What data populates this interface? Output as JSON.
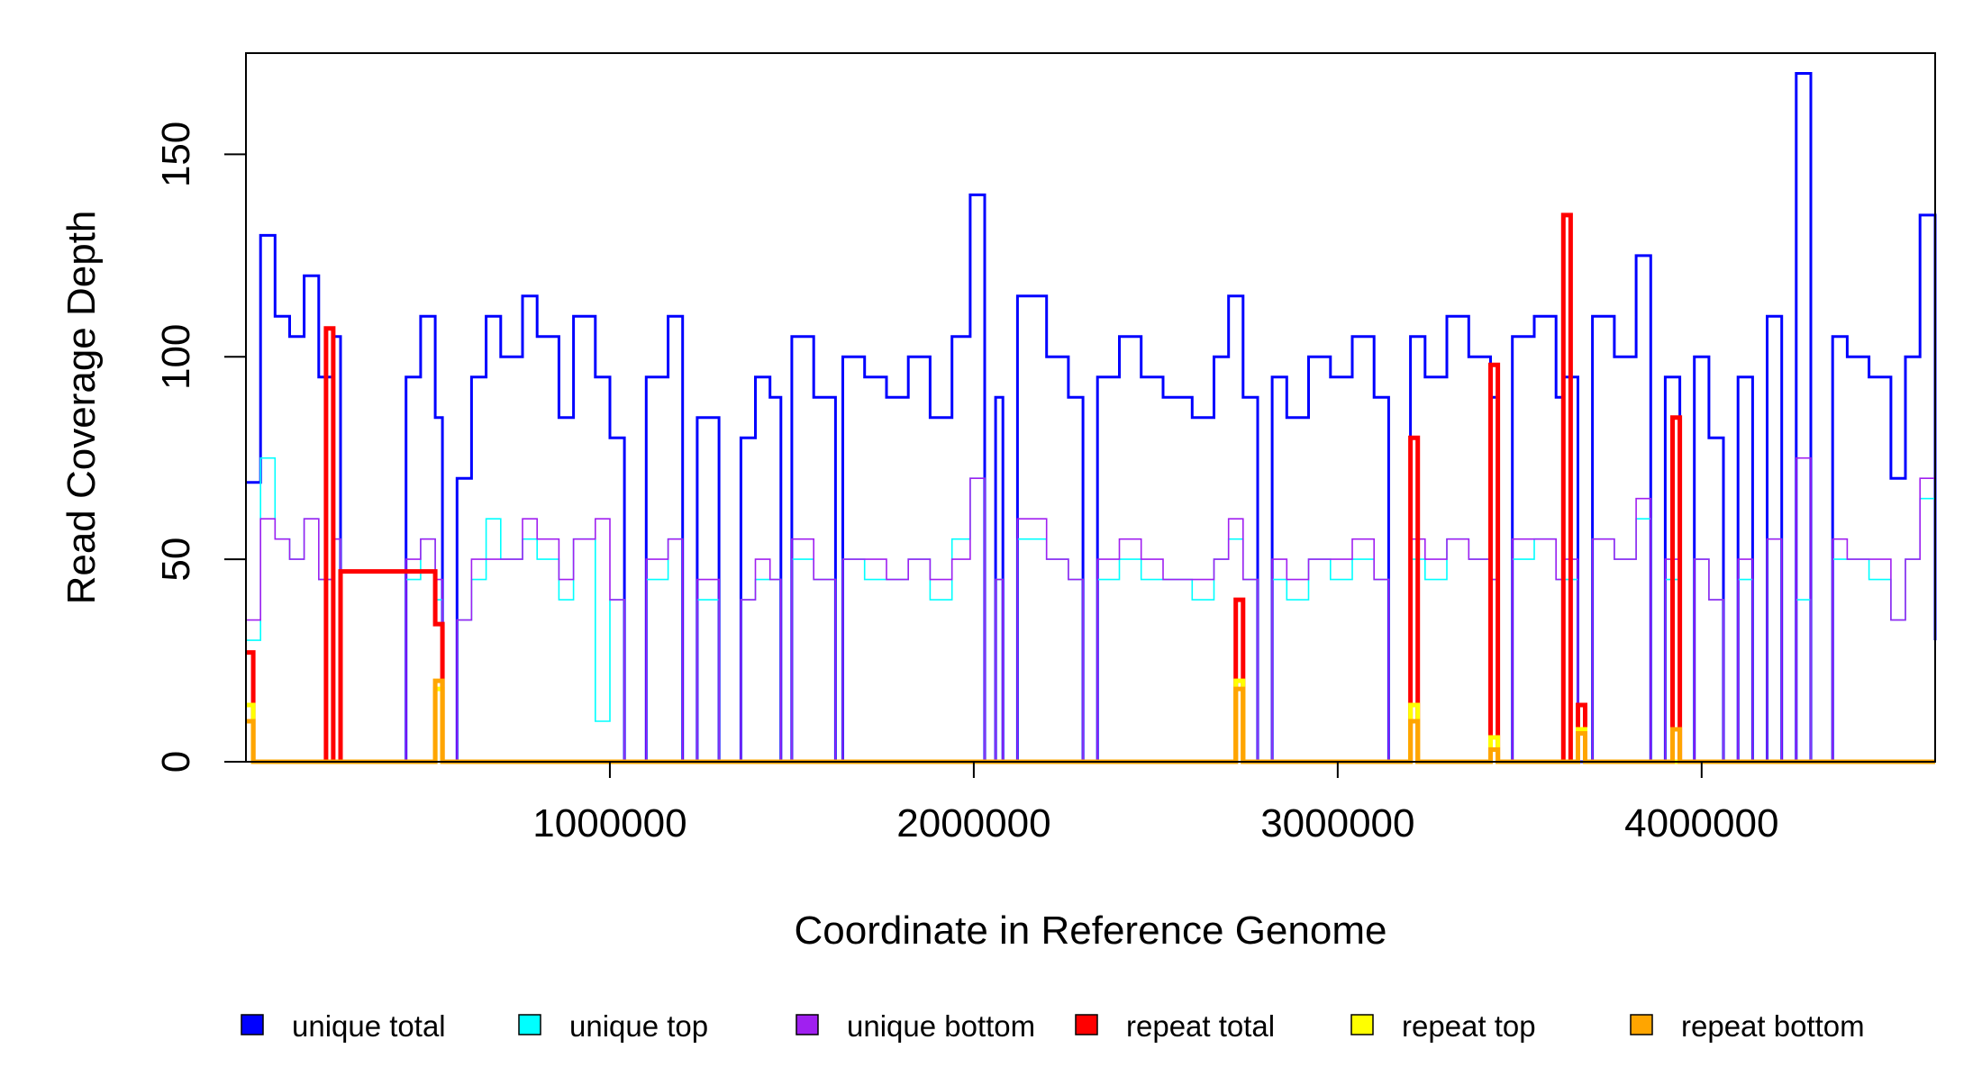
{
  "chart_data": {
    "type": "line",
    "title": "",
    "xlabel": "Coordinate in Reference Genome",
    "ylabel": "Read Coverage Depth",
    "xlim": [
      1,
      4641652
    ],
    "ylim": [
      0,
      175
    ],
    "x_ticks": [
      1000000,
      2000000,
      3000000,
      4000000
    ],
    "x_tick_labels": [
      "1000000",
      "2000000",
      "3000000",
      "4000000"
    ],
    "y_ticks": [
      0,
      50,
      100,
      150
    ],
    "y_tick_labels": [
      "0",
      "50",
      "100",
      "150"
    ],
    "step_plot": true,
    "grid": false,
    "legend_position": "bottom",
    "series": [
      {
        "name": "unique total",
        "color": "#0000FF",
        "x": [
          0,
          40000,
          80000,
          120000,
          160000,
          200000,
          240000,
          260000,
          300000,
          360000,
          400000,
          440000,
          480000,
          520000,
          540000,
          580000,
          620000,
          660000,
          700000,
          760000,
          800000,
          860000,
          900000,
          960000,
          1000000,
          1040000,
          1060000,
          1100000,
          1160000,
          1200000,
          1240000,
          1300000,
          1360000,
          1400000,
          1440000,
          1470000,
          1500000,
          1560000,
          1620000,
          1640000,
          1700000,
          1760000,
          1820000,
          1880000,
          1940000,
          1990000,
          2030000,
          2060000,
          2080000,
          2120000,
          2200000,
          2260000,
          2300000,
          2340000,
          2400000,
          2460000,
          2520000,
          2600000,
          2660000,
          2700000,
          2740000,
          2780000,
          2820000,
          2860000,
          2920000,
          2980000,
          3040000,
          3100000,
          3140000,
          3200000,
          3240000,
          3300000,
          3360000,
          3420000,
          3440000,
          3480000,
          3540000,
          3600000,
          3620000,
          3660000,
          3700000,
          3760000,
          3820000,
          3860000,
          3900000,
          3940000,
          3980000,
          4020000,
          4060000,
          4100000,
          4140000,
          4180000,
          4220000,
          4260000,
          4300000,
          4360000,
          4400000,
          4460000,
          4520000,
          4560000,
          4600000,
          4641652
        ],
        "y": [
          69,
          130,
          110,
          105,
          120,
          95,
          105,
          0,
          0,
          0,
          0,
          95,
          110,
          85,
          0,
          70,
          95,
          110,
          100,
          115,
          105,
          85,
          110,
          95,
          80,
          0,
          0,
          95,
          110,
          0,
          85,
          0,
          80,
          95,
          90,
          0,
          105,
          90,
          0,
          100,
          95,
          90,
          100,
          85,
          105,
          140,
          0,
          90,
          0,
          115,
          100,
          90,
          0,
          95,
          105,
          95,
          90,
          85,
          100,
          115,
          90,
          0,
          95,
          85,
          100,
          95,
          105,
          90,
          0,
          105,
          95,
          110,
          100,
          90,
          0,
          105,
          110,
          90,
          95,
          0,
          110,
          100,
          125,
          0,
          95,
          0,
          100,
          80,
          0,
          95,
          0,
          110,
          0,
          170,
          0,
          105,
          100,
          95,
          70,
          100,
          135,
          30
        ]
      },
      {
        "name": "unique top",
        "color": "#00FFFF",
        "x": [
          0,
          40000,
          80000,
          120000,
          160000,
          200000,
          240000,
          260000,
          300000,
          360000,
          400000,
          440000,
          480000,
          520000,
          540000,
          580000,
          620000,
          660000,
          700000,
          760000,
          800000,
          860000,
          900000,
          960000,
          1000000,
          1040000,
          1060000,
          1100000,
          1160000,
          1200000,
          1240000,
          1300000,
          1360000,
          1400000,
          1440000,
          1470000,
          1500000,
          1560000,
          1620000,
          1640000,
          1700000,
          1760000,
          1820000,
          1880000,
          1940000,
          1990000,
          2030000,
          2060000,
          2080000,
          2120000,
          2200000,
          2260000,
          2300000,
          2340000,
          2400000,
          2460000,
          2520000,
          2600000,
          2660000,
          2700000,
          2740000,
          2780000,
          2820000,
          2860000,
          2920000,
          2980000,
          3040000,
          3100000,
          3140000,
          3200000,
          3240000,
          3300000,
          3360000,
          3420000,
          3440000,
          3480000,
          3540000,
          3600000,
          3620000,
          3660000,
          3700000,
          3760000,
          3820000,
          3860000,
          3900000,
          3940000,
          3980000,
          4020000,
          4060000,
          4100000,
          4140000,
          4180000,
          4220000,
          4260000,
          4300000,
          4360000,
          4400000,
          4460000,
          4520000,
          4560000,
          4600000,
          4641652
        ],
        "y": [
          30,
          75,
          55,
          50,
          60,
          45,
          55,
          0,
          0,
          0,
          0,
          45,
          55,
          40,
          0,
          35,
          45,
          60,
          50,
          55,
          50,
          40,
          55,
          10,
          40,
          0,
          0,
          45,
          55,
          0,
          40,
          0,
          40,
          45,
          45,
          0,
          50,
          45,
          0,
          50,
          45,
          45,
          50,
          40,
          55,
          70,
          0,
          45,
          0,
          55,
          50,
          45,
          0,
          45,
          50,
          45,
          45,
          40,
          50,
          55,
          45,
          0,
          45,
          40,
          50,
          45,
          50,
          45,
          0,
          50,
          45,
          55,
          50,
          45,
          0,
          50,
          55,
          45,
          45,
          0,
          55,
          50,
          60,
          0,
          45,
          0,
          50,
          40,
          0,
          45,
          0,
          55,
          0,
          40,
          0,
          50,
          50,
          45,
          35,
          50,
          65,
          30
        ]
      },
      {
        "name": "unique bottom",
        "color": "#A020F0",
        "x": [
          0,
          40000,
          80000,
          120000,
          160000,
          200000,
          240000,
          260000,
          300000,
          360000,
          400000,
          440000,
          480000,
          520000,
          540000,
          580000,
          620000,
          660000,
          700000,
          760000,
          800000,
          860000,
          900000,
          960000,
          1000000,
          1040000,
          1060000,
          1100000,
          1160000,
          1200000,
          1240000,
          1300000,
          1360000,
          1400000,
          1440000,
          1470000,
          1500000,
          1560000,
          1620000,
          1640000,
          1700000,
          1760000,
          1820000,
          1880000,
          1940000,
          1990000,
          2030000,
          2060000,
          2080000,
          2120000,
          2200000,
          2260000,
          2300000,
          2340000,
          2400000,
          2460000,
          2520000,
          2600000,
          2660000,
          2700000,
          2740000,
          2780000,
          2820000,
          2860000,
          2920000,
          2980000,
          3040000,
          3100000,
          3140000,
          3200000,
          3240000,
          3300000,
          3360000,
          3420000,
          3440000,
          3480000,
          3540000,
          3600000,
          3620000,
          3660000,
          3700000,
          3760000,
          3820000,
          3860000,
          3900000,
          3940000,
          3980000,
          4020000,
          4060000,
          4100000,
          4140000,
          4180000,
          4220000,
          4260000,
          4300000,
          4360000,
          4400000,
          4460000,
          4520000,
          4560000,
          4600000,
          4641652
        ],
        "y": [
          35,
          60,
          55,
          50,
          60,
          45,
          55,
          0,
          0,
          0,
          0,
          50,
          55,
          45,
          0,
          35,
          50,
          50,
          50,
          60,
          55,
          45,
          55,
          60,
          40,
          0,
          0,
          50,
          55,
          0,
          45,
          0,
          40,
          50,
          45,
          0,
          55,
          45,
          0,
          50,
          50,
          45,
          50,
          45,
          50,
          70,
          0,
          45,
          0,
          60,
          50,
          45,
          0,
          50,
          55,
          50,
          45,
          45,
          50,
          60,
          45,
          0,
          50,
          45,
          50,
          50,
          55,
          45,
          0,
          55,
          50,
          55,
          50,
          45,
          0,
          55,
          55,
          45,
          50,
          0,
          55,
          50,
          65,
          0,
          50,
          0,
          50,
          40,
          0,
          50,
          0,
          55,
          0,
          75,
          0,
          55,
          50,
          50,
          35,
          50,
          70,
          30
        ]
      },
      {
        "name": "repeat total",
        "color": "#FF0000",
        "x": [
          0,
          20000,
          40000,
          220000,
          240000,
          260000,
          520000,
          540000,
          2720000,
          2740000,
          3200000,
          3220000,
          3420000,
          3440000,
          3620000,
          3640000,
          3660000,
          3680000,
          3920000,
          3940000,
          4641652
        ],
        "y": [
          27,
          0,
          0,
          107,
          0,
          47,
          34,
          0,
          40,
          0,
          80,
          0,
          98,
          0,
          135,
          0,
          14,
          0,
          85,
          0,
          0
        ]
      },
      {
        "name": "repeat top",
        "color": "#FFFF00",
        "x": [
          0,
          20000,
          40000,
          520000,
          540000,
          2720000,
          2740000,
          3200000,
          3220000,
          3420000,
          3440000,
          3660000,
          3680000,
          4641652
        ],
        "y": [
          14,
          0,
          0,
          18,
          0,
          20,
          0,
          14,
          0,
          6,
          0,
          8,
          0,
          0
        ]
      },
      {
        "name": "repeat bottom",
        "color": "#FFA500",
        "x": [
          0,
          20000,
          40000,
          520000,
          540000,
          2720000,
          2740000,
          3200000,
          3220000,
          3420000,
          3440000,
          3660000,
          3680000,
          3920000,
          3940000,
          4641652
        ],
        "y": [
          10,
          0,
          0,
          20,
          0,
          18,
          0,
          10,
          0,
          3,
          0,
          7,
          0,
          8,
          0,
          0
        ]
      }
    ]
  }
}
